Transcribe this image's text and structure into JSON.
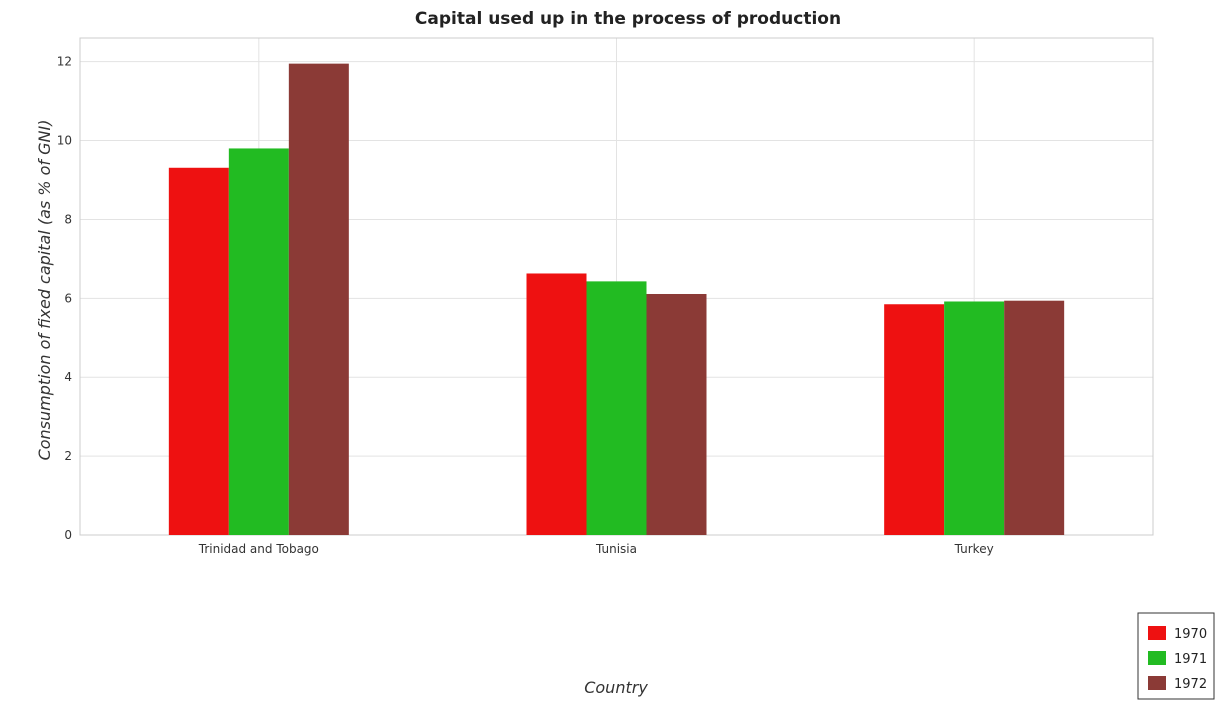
{
  "chart_data": {
    "type": "bar",
    "title": "Capital used up in the process of production",
    "xlabel": "Country",
    "ylabel": "Consumption of fixed capital (as % of GNI)",
    "categories": [
      "Trinidad and Tobago",
      "Tunisia",
      "Turkey"
    ],
    "series": [
      {
        "name": "1970",
        "color": "#ee1111",
        "values": [
          9.31,
          6.63,
          5.85
        ]
      },
      {
        "name": "1971",
        "color": "#22bb22",
        "values": [
          9.8,
          6.43,
          5.92
        ]
      },
      {
        "name": "1972",
        "color": "#8b3a36",
        "values": [
          11.95,
          6.11,
          5.94
        ]
      }
    ],
    "yticks": [
      0,
      2,
      4,
      6,
      8,
      10,
      12
    ],
    "ylim": [
      0,
      12.6
    ],
    "grid": true,
    "legend_position": "bottom-right"
  }
}
